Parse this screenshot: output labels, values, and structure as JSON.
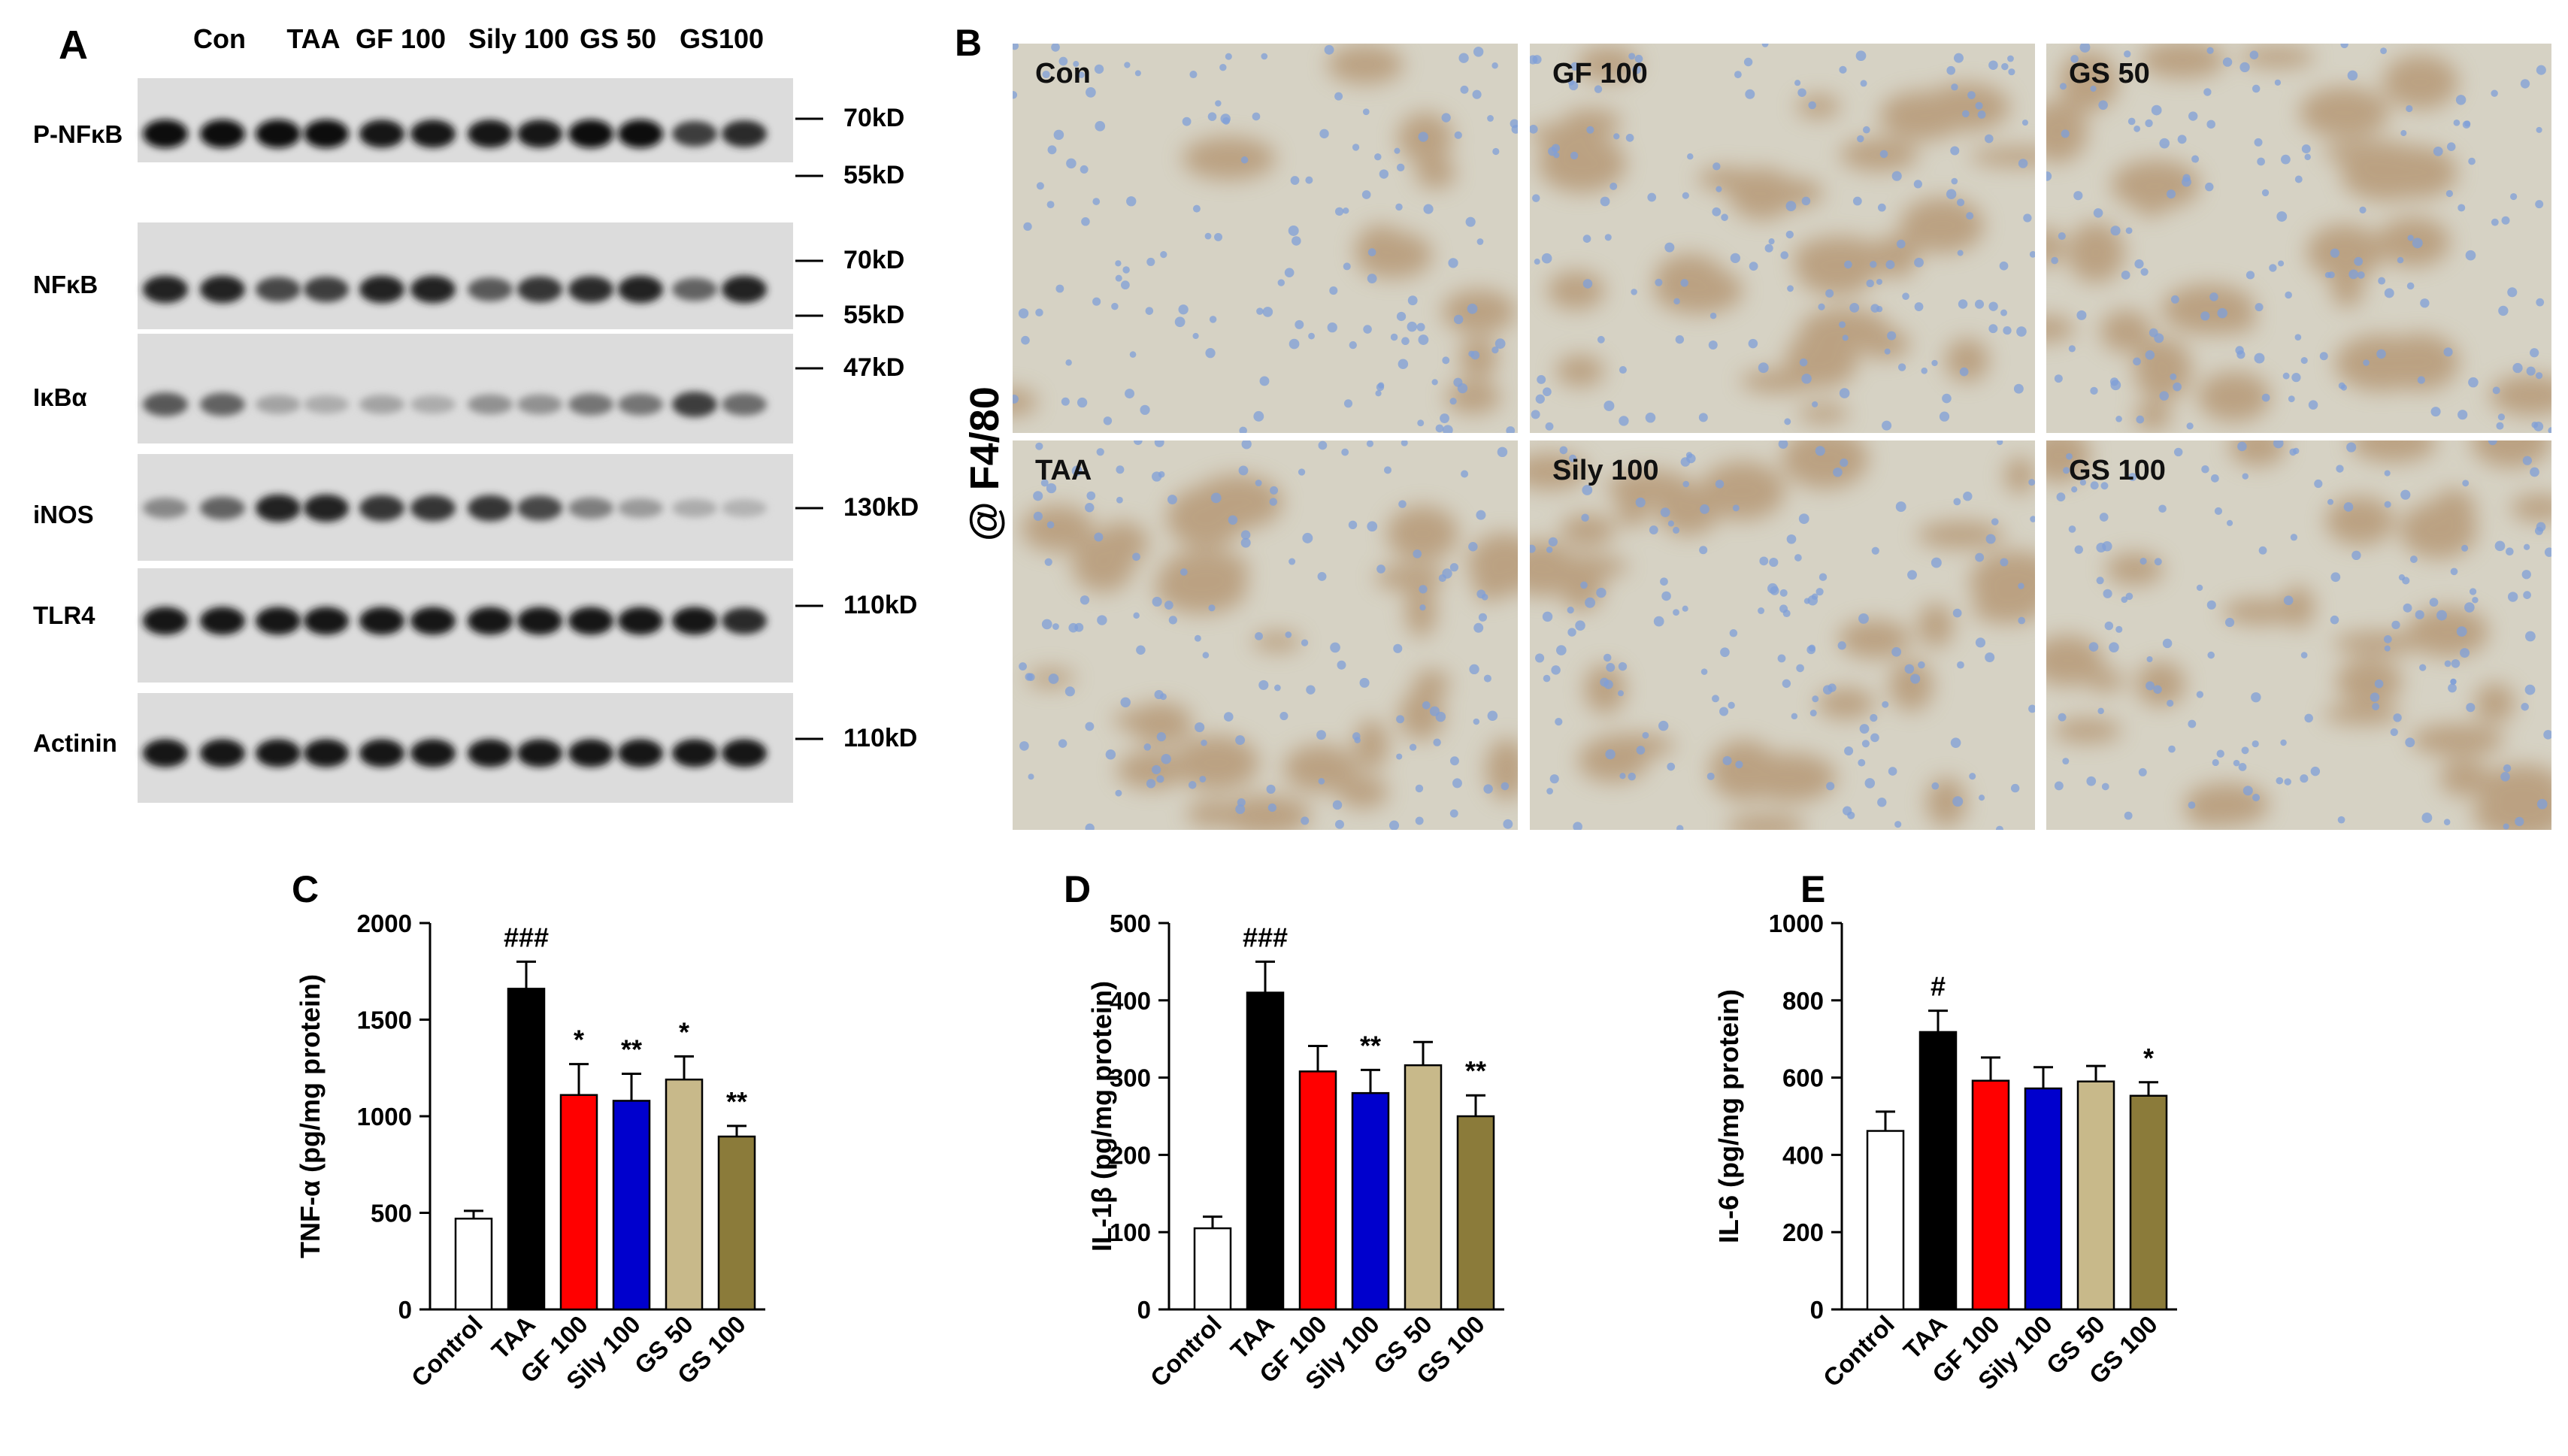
{
  "panel_a": {
    "letter": "A",
    "lane_headers": [
      "Con",
      "TAA",
      "GF 100",
      "Sily 100",
      "GS 50",
      "GS100"
    ],
    "blots": [
      {
        "label": "P-NFκB",
        "markers": [
          "70kD",
          "55kD"
        ]
      },
      {
        "label": "NFκB",
        "markers": [
          "70kD",
          "55kD"
        ]
      },
      {
        "label": "IκBα",
        "markers": [
          "47kD"
        ]
      },
      {
        "label": "iNOS",
        "markers": [
          "130kD"
        ]
      },
      {
        "label": "TLR4",
        "markers": [
          "110kD"
        ]
      },
      {
        "label": "Actinin",
        "markers": [
          "110kD"
        ]
      }
    ],
    "band_intensity": [
      [
        1.0,
        1.0,
        1.0,
        1.0,
        0.95,
        0.95,
        0.95,
        0.95,
        1.0,
        1.0,
        0.75,
        0.85
      ],
      [
        0.9,
        0.9,
        0.7,
        0.75,
        0.9,
        0.9,
        0.6,
        0.8,
        0.85,
        0.9,
        0.55,
        0.9
      ],
      [
        0.6,
        0.55,
        0.2,
        0.15,
        0.2,
        0.15,
        0.3,
        0.3,
        0.45,
        0.45,
        0.75,
        0.5
      ],
      [
        0.35,
        0.55,
        0.9,
        0.9,
        0.8,
        0.8,
        0.8,
        0.7,
        0.4,
        0.25,
        0.15,
        0.12
      ],
      [
        0.95,
        0.95,
        0.95,
        0.95,
        0.95,
        0.95,
        0.95,
        0.95,
        0.95,
        0.95,
        0.95,
        0.85
      ],
      [
        0.95,
        0.95,
        0.95,
        0.95,
        0.95,
        0.95,
        0.95,
        0.95,
        0.95,
        0.95,
        0.95,
        0.95
      ]
    ]
  },
  "panel_b": {
    "letter": "B",
    "stain_label": "@ F4/80",
    "tiles": [
      "Con",
      "GF 100",
      "GS 50",
      "TAA",
      "Sily 100",
      "GS 100"
    ],
    "colors": {
      "tissue": "#d6d2c4",
      "nuclei": "#7f9fd8",
      "stain": "#a57a4d"
    }
  },
  "chart_data": [
    {
      "type": "bar",
      "panel": "C",
      "categories": [
        "Control",
        "TAA",
        "GF 100",
        "Sily 100",
        "GS 50",
        "GS 100"
      ],
      "values": [
        470,
        1660,
        1110,
        1080,
        1190,
        895
      ],
      "errors": [
        40,
        140,
        160,
        140,
        120,
        55
      ],
      "annotations": [
        "",
        "###",
        "*",
        "**",
        "*",
        "**"
      ],
      "ylabel": "TNF-α (pg/mg protein)",
      "ylim": [
        0,
        2000
      ],
      "yticks": [
        0,
        500,
        1000,
        1500,
        2000
      ]
    },
    {
      "type": "bar",
      "panel": "D",
      "categories": [
        "Control",
        "TAA",
        "GF 100",
        "Sily 100",
        "GS 50",
        "GS 100"
      ],
      "values": [
        105,
        410,
        308,
        280,
        316,
        250
      ],
      "errors": [
        15,
        40,
        33,
        30,
        30,
        27
      ],
      "annotations": [
        "",
        "###",
        "",
        "**",
        "",
        "**"
      ],
      "ylabel": "IL-1β (pg/mg protein)",
      "ylim": [
        0,
        500
      ],
      "yticks": [
        0,
        100,
        200,
        300,
        400,
        500
      ]
    },
    {
      "type": "bar",
      "panel": "E",
      "categories": [
        "Control",
        "TAA",
        "GF 100",
        "Sily 100",
        "GS 50",
        "GS 100"
      ],
      "values": [
        462,
        718,
        592,
        572,
        590,
        553
      ],
      "errors": [
        50,
        55,
        60,
        55,
        40,
        35
      ],
      "annotations": [
        "",
        "#",
        "",
        "",
        "",
        "*"
      ],
      "ylabel": "IL-6 (pg/mg protein)",
      "ylim": [
        0,
        1000
      ],
      "yticks": [
        0,
        200,
        400,
        600,
        800,
        1000
      ]
    }
  ],
  "bar_colors": [
    "#ffffff",
    "#000000",
    "#ff0000",
    "#0000cd",
    "#c8b98a",
    "#8b7b3a"
  ]
}
